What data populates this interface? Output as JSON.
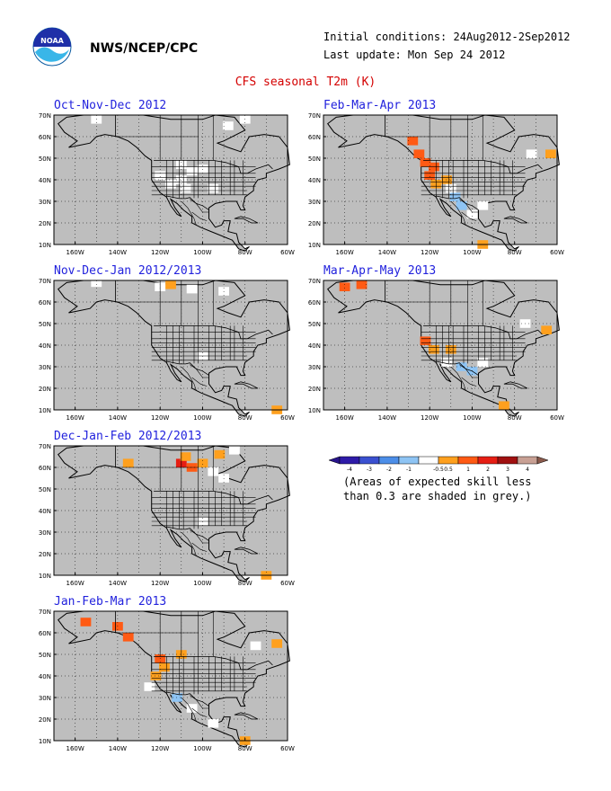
{
  "header": {
    "org": "NWS/NCEP/CPC",
    "initial_conditions": "Initial conditions: 24Aug2012-2Sep2012",
    "last_update": "Last update: Mon Sep 24 2012",
    "title": "CFS seasonal T2m (K)"
  },
  "axes": {
    "lat_labels": [
      "70N",
      "60N",
      "50N",
      "40N",
      "30N",
      "20N",
      "10N"
    ],
    "lon_labels": [
      "160W",
      "140W",
      "120W",
      "100W",
      "80W",
      "60W"
    ]
  },
  "panels": [
    {
      "title": "Oct-Nov-Dec 2012",
      "anomalies": [
        {
          "lon": -110,
          "lat": 40,
          "value": 0
        },
        {
          "lon": -115,
          "lat": 38,
          "value": 0
        },
        {
          "lon": -105,
          "lat": 44,
          "value": 0
        },
        {
          "lon": -100,
          "lat": 45,
          "value": 0
        },
        {
          "lon": -108,
          "lat": 36,
          "value": 0
        },
        {
          "lon": -120,
          "lat": 42,
          "value": 0
        },
        {
          "lon": -110,
          "lat": 47,
          "value": 0
        },
        {
          "lon": -95,
          "lat": 36,
          "value": 0
        },
        {
          "lon": -88,
          "lat": 65,
          "value": 0
        },
        {
          "lon": -80,
          "lat": 68,
          "value": 0
        },
        {
          "lon": -150,
          "lat": 68,
          "value": 0
        }
      ]
    },
    {
      "title": "Nov-Dec-Jan 2012/2013",
      "anomalies": [
        {
          "lon": -115,
          "lat": 68,
          "value": 0.5
        },
        {
          "lon": -120,
          "lat": 67,
          "value": 0
        },
        {
          "lon": -105,
          "lat": 66,
          "value": 0
        },
        {
          "lon": -90,
          "lat": 65,
          "value": 0
        },
        {
          "lon": -100,
          "lat": 35,
          "value": 0
        },
        {
          "lon": -65,
          "lat": 10,
          "value": 0.5
        },
        {
          "lon": -150,
          "lat": 69,
          "value": 0
        }
      ]
    },
    {
      "title": "Dec-Jan-Feb 2012/2013",
      "anomalies": [
        {
          "lon": -110,
          "lat": 62,
          "value": 2
        },
        {
          "lon": -105,
          "lat": 60,
          "value": 1
        },
        {
          "lon": -100,
          "lat": 62,
          "value": 0.5
        },
        {
          "lon": -108,
          "lat": 65,
          "value": 0.5
        },
        {
          "lon": -95,
          "lat": 58,
          "value": 0
        },
        {
          "lon": -92,
          "lat": 66,
          "value": 0.5
        },
        {
          "lon": -85,
          "lat": 68,
          "value": 0
        },
        {
          "lon": -135,
          "lat": 62,
          "value": 0.5
        },
        {
          "lon": -90,
          "lat": 55,
          "value": 0
        },
        {
          "lon": -100,
          "lat": 35,
          "value": 0
        },
        {
          "lon": -70,
          "lat": 10,
          "value": 0.5
        }
      ]
    },
    {
      "title": "Jan-Feb-Mar 2013",
      "anomalies": [
        {
          "lon": -155,
          "lat": 65,
          "value": 1
        },
        {
          "lon": -140,
          "lat": 63,
          "value": 1
        },
        {
          "lon": -135,
          "lat": 58,
          "value": 1
        },
        {
          "lon": -120,
          "lat": 48,
          "value": 1
        },
        {
          "lon": -118,
          "lat": 44,
          "value": 0.5
        },
        {
          "lon": -122,
          "lat": 40,
          "value": 0.5
        },
        {
          "lon": -110,
          "lat": 50,
          "value": 0.5
        },
        {
          "lon": -125,
          "lat": 35,
          "value": 0
        },
        {
          "lon": -112,
          "lat": 30,
          "value": -0.5
        },
        {
          "lon": -105,
          "lat": 25,
          "value": 0
        },
        {
          "lon": -95,
          "lat": 18,
          "value": 0
        },
        {
          "lon": -75,
          "lat": 54,
          "value": 0
        },
        {
          "lon": -65,
          "lat": 55,
          "value": 0.5
        },
        {
          "lon": -80,
          "lat": 10,
          "value": 0.5
        }
      ]
    },
    {
      "title": "Feb-Mar-Apr 2013",
      "anomalies": [
        {
          "lon": -128,
          "lat": 58,
          "value": 1
        },
        {
          "lon": -125,
          "lat": 52,
          "value": 1
        },
        {
          "lon": -122,
          "lat": 48,
          "value": 1
        },
        {
          "lon": -118,
          "lat": 46,
          "value": 1
        },
        {
          "lon": -120,
          "lat": 42,
          "value": 1
        },
        {
          "lon": -117,
          "lat": 38,
          "value": 0.5
        },
        {
          "lon": -112,
          "lat": 40,
          "value": 0.5
        },
        {
          "lon": -108,
          "lat": 32,
          "value": -0.5
        },
        {
          "lon": -105,
          "lat": 28,
          "value": -0.5
        },
        {
          "lon": -100,
          "lat": 24,
          "value": 0
        },
        {
          "lon": -110,
          "lat": 36,
          "value": 0
        },
        {
          "lon": -95,
          "lat": 28,
          "value": 0
        },
        {
          "lon": -63,
          "lat": 52,
          "value": 0.5
        },
        {
          "lon": -72,
          "lat": 52,
          "value": 0
        },
        {
          "lon": -95,
          "lat": 10,
          "value": 0.5
        }
      ]
    },
    {
      "title": "Mar-Apr-May 2013",
      "anomalies": [
        {
          "lon": -160,
          "lat": 67,
          "value": 1
        },
        {
          "lon": -152,
          "lat": 68,
          "value": 1
        },
        {
          "lon": -122,
          "lat": 42,
          "value": 1
        },
        {
          "lon": -118,
          "lat": 38,
          "value": 0.5
        },
        {
          "lon": -110,
          "lat": 38,
          "value": 0.5
        },
        {
          "lon": -105,
          "lat": 30,
          "value": -0.5
        },
        {
          "lon": -100,
          "lat": 28,
          "value": -0.5
        },
        {
          "lon": -95,
          "lat": 32,
          "value": 0
        },
        {
          "lon": -112,
          "lat": 32,
          "value": 0
        },
        {
          "lon": -75,
          "lat": 50,
          "value": 0
        },
        {
          "lon": -65,
          "lat": 47,
          "value": 0.5
        },
        {
          "lon": -85,
          "lat": 12,
          "value": 0.5
        }
      ]
    }
  ],
  "legend": {
    "tick_labels": [
      "-4",
      "-3",
      "-2",
      "-1",
      "-0.5",
      "0.5",
      "1",
      "2",
      "3",
      "4"
    ],
    "colors": [
      "#2e1ba8",
      "#3a50d0",
      "#4c8ee8",
      "#8ec4f4",
      "#ffffff",
      "#ffa01e",
      "#ff5a14",
      "#e61e14",
      "#a01010",
      "#c8a094"
    ],
    "cap_low": "#28148c",
    "cap_high": "#8a5a4c",
    "note_line1": "(Areas of expected skill less",
    "note_line2": "than 0.3 are shaded in grey.)"
  },
  "colors": {
    "skill_mask": "#bebebe",
    "title_blue": "#2222dd",
    "title_red": "#d40000"
  }
}
